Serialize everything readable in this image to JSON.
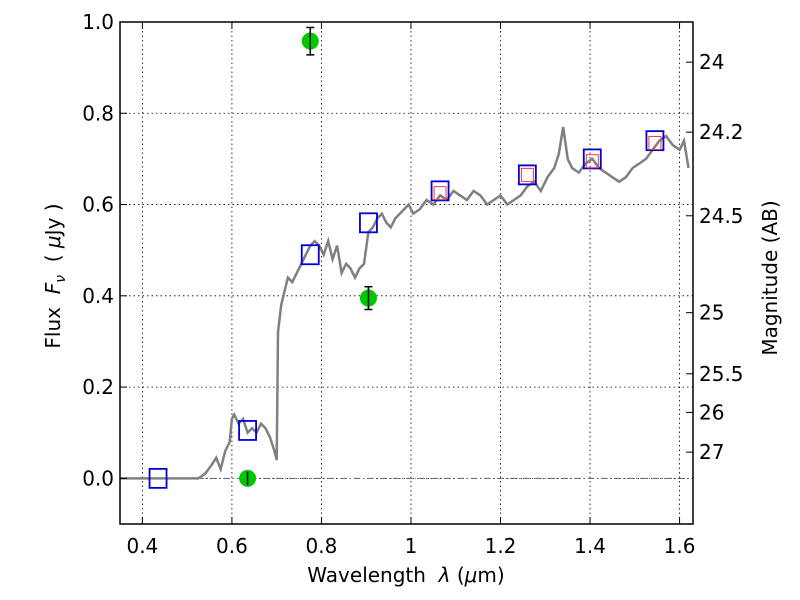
{
  "chart_data": {
    "type": "scatter",
    "xlabel": "Wavelength  λ (μm)",
    "ylabel": "Flux  F_ν  ( μJy )",
    "ylabel_parts": [
      "Flux  ",
      "F",
      "ν",
      "  ( ",
      "μ",
      "Jy )"
    ],
    "xlabel_parts": [
      "Wavelength  ",
      "λ",
      " (",
      "μ",
      "m)"
    ],
    "right_ylabel": "Magnitude (AB)",
    "xlim": [
      0.35,
      1.63
    ],
    "ylim": [
      -0.1,
      1.0
    ],
    "x_ticks": [
      0.4,
      0.6,
      0.8,
      1.0,
      1.2,
      1.4,
      1.6
    ],
    "x_tick_labels": [
      "0.4",
      "0.6",
      "0.8",
      "1",
      "1.2",
      "1.4",
      "1.6"
    ],
    "y_ticks": [
      0.0,
      0.2,
      0.4,
      0.6,
      0.8,
      1.0
    ],
    "y_tick_labels": [
      "0.0",
      "0.2",
      "0.4",
      "0.6",
      "0.8",
      "1.0"
    ],
    "mag_ticks": [
      {
        "label": "24",
        "flux": 0.912
      },
      {
        "label": "24.2",
        "flux": 0.7586
      },
      {
        "label": "24.5",
        "flux": 0.5754
      },
      {
        "label": "25",
        "flux": 0.3631
      },
      {
        "label": "25.5",
        "flux": 0.2291
      },
      {
        "label": "26",
        "flux": 0.1445
      },
      {
        "label": "27",
        "flux": 0.0575
      }
    ],
    "grid": true,
    "zero_line": true,
    "colors": {
      "spectrum": "#808080",
      "model_box": "#0000dd",
      "obs_box": "#ff3333",
      "detection": "#00c800",
      "zero_line": "#666666"
    },
    "series": [
      {
        "kind": "spectrum",
        "points": [
          [
            0.35,
            0.0
          ],
          [
            0.4,
            0.0
          ],
          [
            0.45,
            0.0
          ],
          [
            0.5,
            0.0
          ],
          [
            0.525,
            0.0
          ],
          [
            0.54,
            0.01
          ],
          [
            0.555,
            0.03
          ],
          [
            0.565,
            0.045
          ],
          [
            0.575,
            0.02
          ],
          [
            0.585,
            0.06
          ],
          [
            0.595,
            0.08
          ],
          [
            0.6,
            0.13
          ],
          [
            0.605,
            0.14
          ],
          [
            0.615,
            0.12
          ],
          [
            0.625,
            0.13
          ],
          [
            0.635,
            0.1
          ],
          [
            0.645,
            0.11
          ],
          [
            0.655,
            0.1
          ],
          [
            0.665,
            0.12
          ],
          [
            0.675,
            0.11
          ],
          [
            0.685,
            0.09
          ],
          [
            0.695,
            0.06
          ],
          [
            0.7,
            0.04
          ],
          [
            0.703,
            0.32
          ],
          [
            0.71,
            0.38
          ],
          [
            0.715,
            0.4
          ],
          [
            0.725,
            0.44
          ],
          [
            0.735,
            0.43
          ],
          [
            0.745,
            0.45
          ],
          [
            0.755,
            0.47
          ],
          [
            0.765,
            0.49
          ],
          [
            0.775,
            0.51
          ],
          [
            0.785,
            0.52
          ],
          [
            0.795,
            0.51
          ],
          [
            0.805,
            0.49
          ],
          [
            0.815,
            0.52
          ],
          [
            0.825,
            0.48
          ],
          [
            0.835,
            0.51
          ],
          [
            0.845,
            0.45
          ],
          [
            0.855,
            0.47
          ],
          [
            0.865,
            0.46
          ],
          [
            0.875,
            0.44
          ],
          [
            0.885,
            0.46
          ],
          [
            0.895,
            0.47
          ],
          [
            0.905,
            0.54
          ],
          [
            0.915,
            0.55
          ],
          [
            0.925,
            0.57
          ],
          [
            0.935,
            0.58
          ],
          [
            0.945,
            0.56
          ],
          [
            0.955,
            0.55
          ],
          [
            0.965,
            0.57
          ],
          [
            0.975,
            0.58
          ],
          [
            0.985,
            0.59
          ],
          [
            0.995,
            0.6
          ],
          [
            1.005,
            0.58
          ],
          [
            1.02,
            0.59
          ],
          [
            1.035,
            0.61
          ],
          [
            1.05,
            0.6
          ],
          [
            1.065,
            0.62
          ],
          [
            1.08,
            0.61
          ],
          [
            1.095,
            0.63
          ],
          [
            1.11,
            0.62
          ],
          [
            1.125,
            0.61
          ],
          [
            1.14,
            0.63
          ],
          [
            1.155,
            0.62
          ],
          [
            1.17,
            0.6
          ],
          [
            1.185,
            0.61
          ],
          [
            1.2,
            0.62
          ],
          [
            1.215,
            0.6
          ],
          [
            1.23,
            0.61
          ],
          [
            1.245,
            0.62
          ],
          [
            1.26,
            0.64
          ],
          [
            1.275,
            0.65
          ],
          [
            1.29,
            0.63
          ],
          [
            1.305,
            0.66
          ],
          [
            1.32,
            0.68
          ],
          [
            1.33,
            0.71
          ],
          [
            1.34,
            0.77
          ],
          [
            1.35,
            0.7
          ],
          [
            1.36,
            0.68
          ],
          [
            1.375,
            0.67
          ],
          [
            1.39,
            0.69
          ],
          [
            1.405,
            0.7
          ],
          [
            1.42,
            0.68
          ],
          [
            1.435,
            0.67
          ],
          [
            1.45,
            0.66
          ],
          [
            1.465,
            0.65
          ],
          [
            1.48,
            0.66
          ],
          [
            1.495,
            0.68
          ],
          [
            1.51,
            0.69
          ],
          [
            1.525,
            0.7
          ],
          [
            1.54,
            0.72
          ],
          [
            1.555,
            0.74
          ],
          [
            1.57,
            0.75
          ],
          [
            1.585,
            0.73
          ],
          [
            1.6,
            0.72
          ],
          [
            1.61,
            0.74
          ],
          [
            1.62,
            0.68
          ]
        ]
      },
      {
        "kind": "model_photometry",
        "points": [
          [
            0.435,
            0.0
          ],
          [
            0.635,
            0.105
          ],
          [
            0.775,
            0.49
          ],
          [
            0.905,
            0.56
          ],
          [
            1.065,
            0.63
          ],
          [
            1.26,
            0.665
          ],
          [
            1.405,
            0.7
          ],
          [
            1.545,
            0.74
          ]
        ]
      },
      {
        "kind": "observed_photometry",
        "points": [
          [
            1.065,
            0.625
          ],
          [
            1.26,
            0.665
          ],
          [
            1.405,
            0.695
          ],
          [
            1.545,
            0.735
          ]
        ]
      },
      {
        "kind": "detections",
        "points": [
          {
            "x": 0.635,
            "y": 0.0,
            "err": 0.015
          },
          {
            "x": 0.775,
            "y": 0.958,
            "err": 0.03
          },
          {
            "x": 0.905,
            "y": 0.395,
            "err": 0.025
          }
        ]
      }
    ]
  }
}
